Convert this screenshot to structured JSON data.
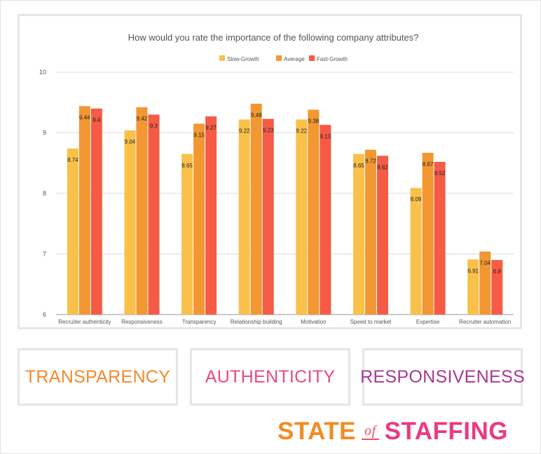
{
  "chart_data": {
    "type": "bar",
    "title": "How would you rate the importance of the following company attributes?",
    "categories": [
      "Recruiter authenticity",
      "Responsiveness",
      "Transparency",
      "Relationship building",
      "Motivation",
      "Speed to market",
      "Expertise",
      "Recruiter automation"
    ],
    "series": [
      {
        "name": "Slow-Growth",
        "color": "#f9c04a",
        "values": [
          8.74,
          9.04,
          8.65,
          9.22,
          9.22,
          8.65,
          8.09,
          6.91
        ]
      },
      {
        "name": "Average",
        "color": "#f29732",
        "values": [
          9.44,
          9.42,
          9.15,
          9.48,
          9.38,
          8.72,
          8.67,
          7.04
        ]
      },
      {
        "name": "Fast-Growth",
        "color": "#f55b45",
        "values": [
          9.4,
          9.3,
          9.27,
          9.23,
          9.13,
          8.62,
          8.52,
          6.9
        ]
      }
    ],
    "ylim": [
      6,
      10
    ],
    "yticks": [
      6,
      7,
      8,
      9,
      10
    ],
    "grid": true,
    "legend": "top-center",
    "xlabel": "",
    "ylabel": ""
  },
  "keywords": [
    {
      "label": "TRANSPARENCY",
      "color": "#f5882a"
    },
    {
      "label": "AUTHENTICITY",
      "color": "#ec4a7c"
    },
    {
      "label": "RESPONSIVENESS",
      "color": "#a9388f"
    }
  ],
  "logo": {
    "word1": "STATE",
    "word2": "of",
    "word3": "STAFFING",
    "colors": {
      "state": "#f58a22",
      "of": "#ef4d6a",
      "staffing": "#ea3a83"
    }
  }
}
